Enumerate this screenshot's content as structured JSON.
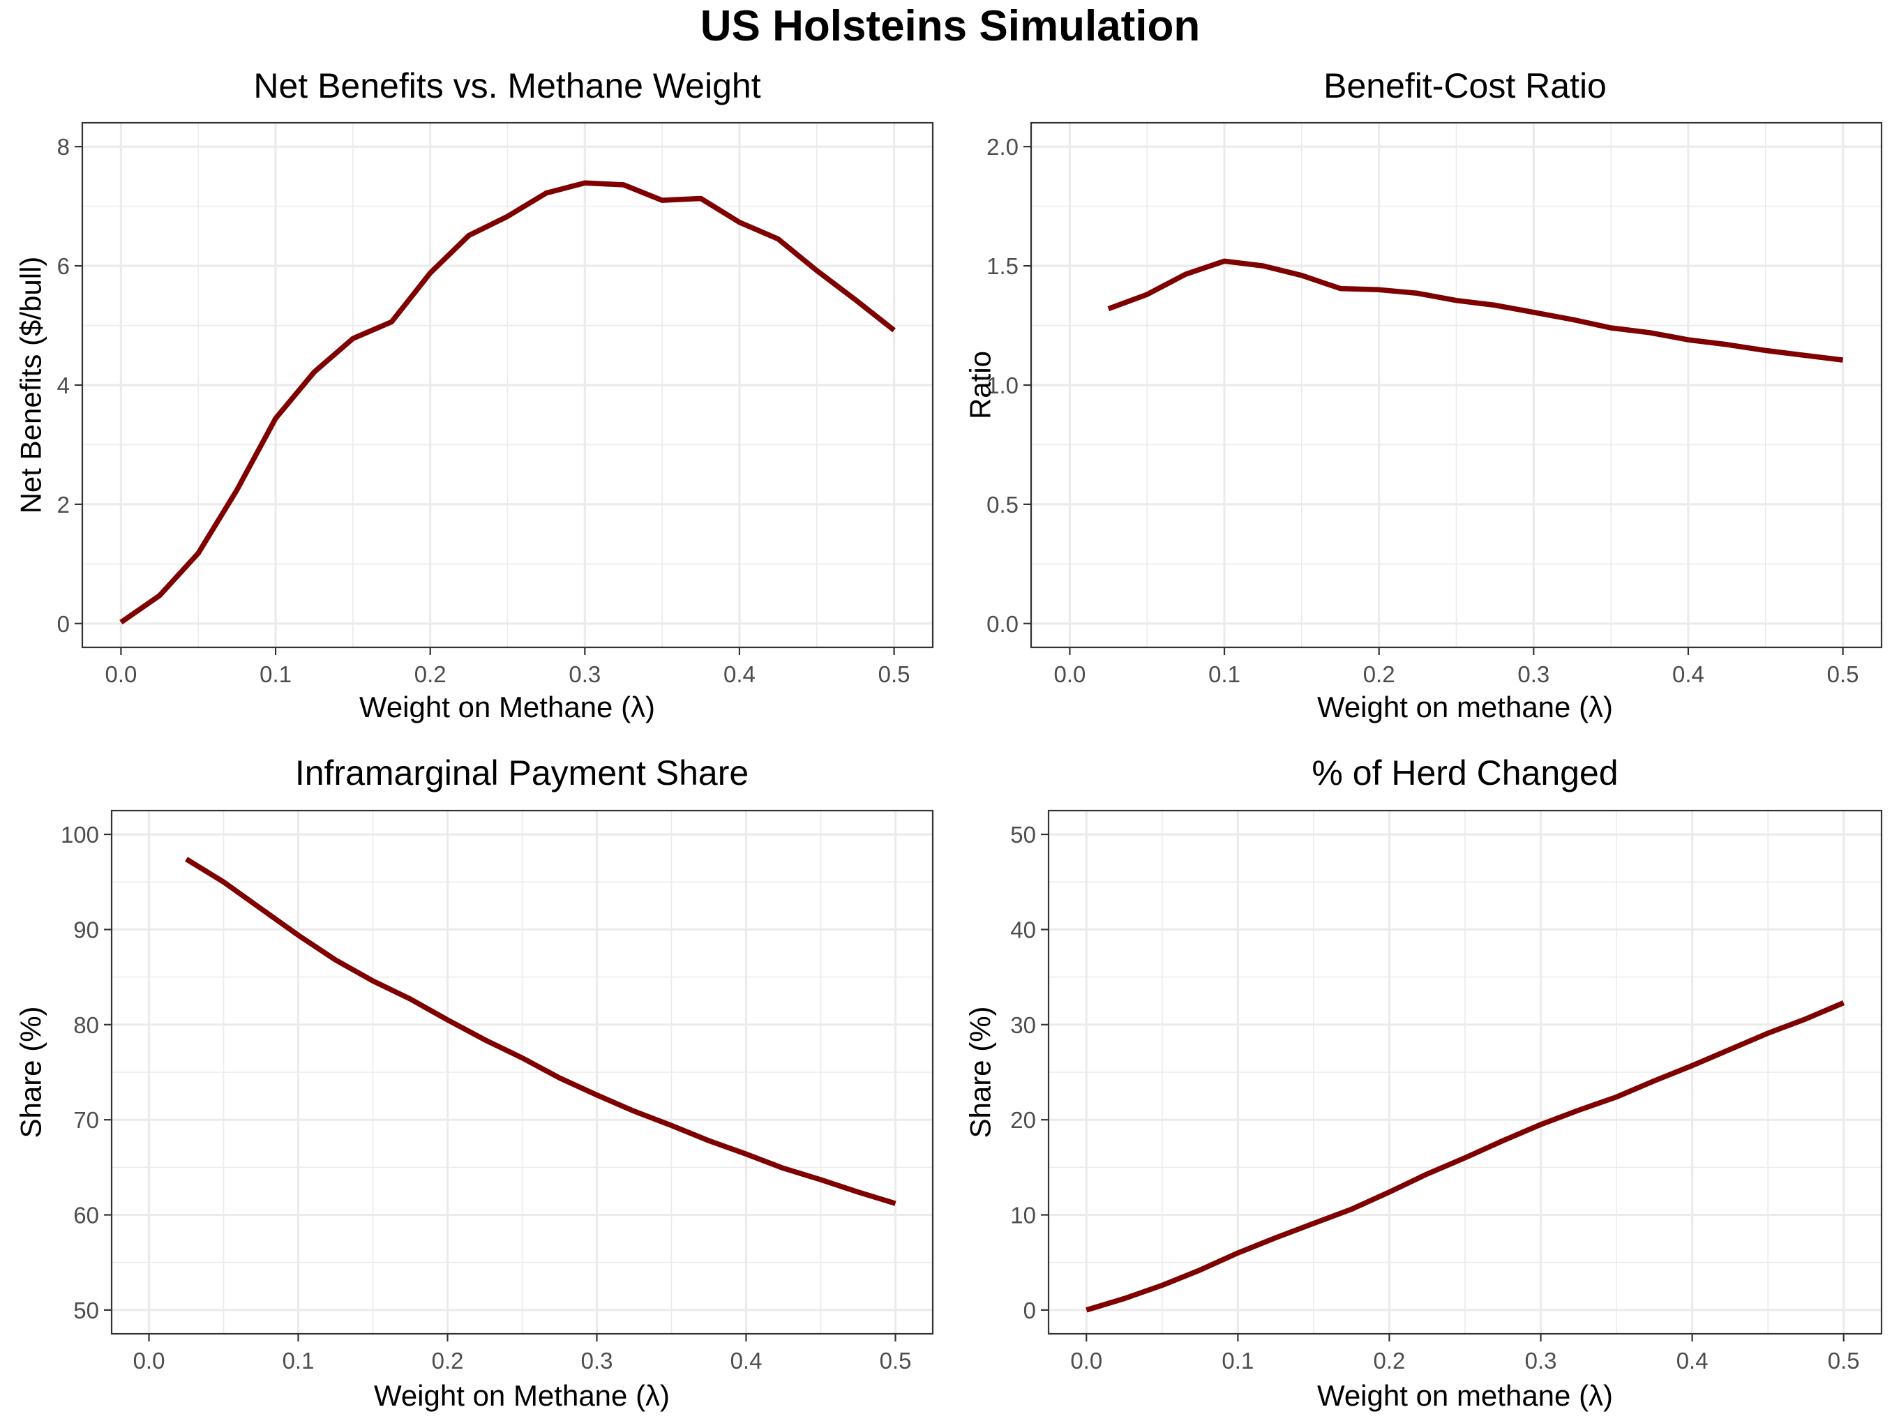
{
  "figure_title": "US Holsteins Simulation",
  "colors": {
    "line": "#7f0000",
    "grid": "#ebebeb",
    "border": "#333333",
    "tick_text": "#4d4d4d"
  },
  "chart_data": [
    {
      "type": "line",
      "title": "Net Benefits vs. Methane Weight",
      "xlabel": "Weight on Methane (λ)",
      "ylabel": "Net Benefits ($/bull)",
      "xlim": [
        0,
        0.5
      ],
      "ylim": [
        0,
        8
      ],
      "xticks": [
        0,
        0.1,
        0.2,
        0.3,
        0.4,
        0.5
      ],
      "xtick_labels": [
        "0.0",
        "0.1",
        "0.2",
        "0.3",
        "0.4",
        "0.5"
      ],
      "yticks": [
        0,
        2,
        4,
        6,
        8
      ],
      "ytick_labels": [
        "0",
        "2",
        "4",
        "6",
        "8"
      ],
      "grid": true,
      "x": [
        0,
        0.025,
        0.05,
        0.075,
        0.1,
        0.125,
        0.15,
        0.175,
        0.2,
        0.225,
        0.25,
        0.275,
        0.3,
        0.325,
        0.35,
        0.375,
        0.4,
        0.425,
        0.45,
        0.475,
        0.5
      ],
      "y": [
        0.02,
        0.47,
        1.18,
        2.24,
        3.44,
        4.22,
        4.78,
        5.06,
        5.88,
        6.51,
        6.83,
        7.22,
        7.39,
        7.36,
        7.1,
        7.13,
        6.73,
        6.45,
        5.92,
        5.43,
        4.92
      ]
    },
    {
      "type": "line",
      "title": "Benefit-Cost Ratio",
      "xlabel": "Weight on methane (λ)",
      "ylabel": "Ratio",
      "xlim": [
        0,
        0.5
      ],
      "ylim": [
        0,
        2
      ],
      "xticks": [
        0,
        0.1,
        0.2,
        0.3,
        0.4,
        0.5
      ],
      "xtick_labels": [
        "0.0",
        "0.1",
        "0.2",
        "0.3",
        "0.4",
        "0.5"
      ],
      "yticks": [
        0,
        0.5,
        1,
        1.5,
        2
      ],
      "ytick_labels": [
        "0.0",
        "0.5",
        "1.0",
        "1.5",
        "2.0"
      ],
      "grid": true,
      "x": [
        0.025,
        0.05,
        0.075,
        0.1,
        0.125,
        0.15,
        0.175,
        0.2,
        0.225,
        0.25,
        0.275,
        0.3,
        0.325,
        0.35,
        0.375,
        0.4,
        0.425,
        0.45,
        0.475,
        0.5
      ],
      "y": [
        1.32,
        1.38,
        1.465,
        1.52,
        1.5,
        1.46,
        1.405,
        1.4,
        1.385,
        1.355,
        1.335,
        1.305,
        1.275,
        1.24,
        1.22,
        1.19,
        1.17,
        1.145,
        1.125,
        1.105
      ]
    },
    {
      "type": "line",
      "title": "Inframarginal Payment Share",
      "xlabel": "Weight on Methane (λ)",
      "ylabel": "Share (%)",
      "xlim": [
        0,
        0.5
      ],
      "ylim": [
        50,
        100
      ],
      "xticks": [
        0,
        0.1,
        0.2,
        0.3,
        0.4,
        0.5
      ],
      "xtick_labels": [
        "0.0",
        "0.1",
        "0.2",
        "0.3",
        "0.4",
        "0.5"
      ],
      "yticks": [
        50,
        60,
        70,
        80,
        90,
        100
      ],
      "ytick_labels": [
        "50",
        "60",
        "70",
        "80",
        "90",
        "100"
      ],
      "grid": true,
      "x": [
        0.025,
        0.05,
        0.075,
        0.1,
        0.125,
        0.15,
        0.175,
        0.2,
        0.225,
        0.25,
        0.275,
        0.3,
        0.325,
        0.35,
        0.375,
        0.4,
        0.425,
        0.45,
        0.475,
        0.5
      ],
      "y": [
        97.4,
        95.0,
        92.2,
        89.4,
        86.8,
        84.6,
        82.7,
        80.5,
        78.4,
        76.5,
        74.4,
        72.6,
        70.9,
        69.4,
        67.8,
        66.4,
        64.9,
        63.7,
        62.4,
        61.2
      ]
    },
    {
      "type": "line",
      "title": "% of Herd Changed",
      "xlabel": "Weight on methane (λ)",
      "ylabel": "Share (%)",
      "xlim": [
        0,
        0.5
      ],
      "ylim": [
        0,
        50
      ],
      "xticks": [
        0,
        0.1,
        0.2,
        0.3,
        0.4,
        0.5
      ],
      "xtick_labels": [
        "0.0",
        "0.1",
        "0.2",
        "0.3",
        "0.4",
        "0.5"
      ],
      "yticks": [
        0,
        10,
        20,
        30,
        40,
        50
      ],
      "ytick_labels": [
        "0",
        "10",
        "20",
        "30",
        "40",
        "50"
      ],
      "grid": true,
      "x": [
        0,
        0.025,
        0.05,
        0.075,
        0.1,
        0.125,
        0.15,
        0.175,
        0.2,
        0.225,
        0.25,
        0.275,
        0.3,
        0.325,
        0.35,
        0.375,
        0.4,
        0.425,
        0.45,
        0.475,
        0.5
      ],
      "y": [
        0,
        1.2,
        2.6,
        4.2,
        6.0,
        7.6,
        9.1,
        10.6,
        12.4,
        14.3,
        16.0,
        17.8,
        19.5,
        21.0,
        22.4,
        24.1,
        25.7,
        27.4,
        29.1,
        30.6,
        32.3
      ]
    }
  ]
}
